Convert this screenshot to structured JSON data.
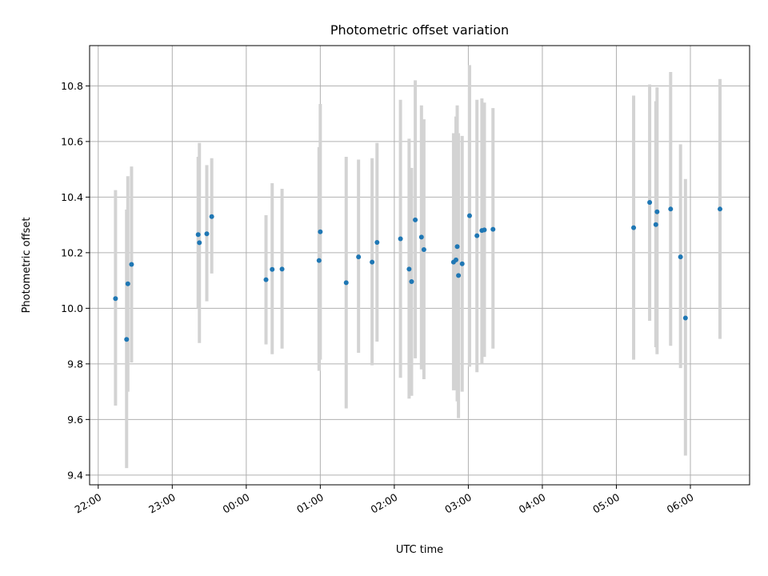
{
  "chart_data": {
    "type": "scatter",
    "title": "Photometric offset variation",
    "xlabel": "UTC time",
    "ylabel": "Photometric offset",
    "x_axis_kind": "time",
    "xlim": [
      "21:53",
      "06:48"
    ],
    "ylim": [
      9.365,
      10.945
    ],
    "grid": true,
    "x_ticks": [
      "22:00",
      "23:00",
      "00:00",
      "01:00",
      "02:00",
      "03:00",
      "04:00",
      "05:00",
      "06:00"
    ],
    "y_ticks": [
      "9.4",
      "9.6",
      "9.8",
      "10.0",
      "10.2",
      "10.4",
      "10.6",
      "10.8"
    ],
    "points": [
      {
        "x": "22:14",
        "y": 10.035,
        "err_low": 9.65,
        "err_high": 10.425
      },
      {
        "x": "22:23",
        "y": 9.888,
        "err_low": 9.425,
        "err_high": 10.355
      },
      {
        "x": "22:24",
        "y": 10.088,
        "err_low": 9.7,
        "err_high": 10.475
      },
      {
        "x": "22:27",
        "y": 10.158,
        "err_low": 9.805,
        "err_high": 10.51
      },
      {
        "x": "23:21",
        "y": 10.265,
        "err_low": 10.0,
        "err_high": 10.545
      },
      {
        "x": "23:22",
        "y": 10.236,
        "err_low": 9.875,
        "err_high": 10.595
      },
      {
        "x": "23:28",
        "y": 10.268,
        "err_low": 10.025,
        "err_high": 10.515
      },
      {
        "x": "23:32",
        "y": 10.33,
        "err_low": 10.125,
        "err_high": 10.54
      },
      {
        "x": "00:16",
        "y": 10.103,
        "err_low": 9.87,
        "err_high": 10.335
      },
      {
        "x": "00:21",
        "y": 10.14,
        "err_low": 9.835,
        "err_high": 10.45
      },
      {
        "x": "00:29",
        "y": 10.141,
        "err_low": 9.855,
        "err_high": 10.43
      },
      {
        "x": "00:59",
        "y": 10.172,
        "err_low": 9.775,
        "err_high": 10.58
      },
      {
        "x": "01:00",
        "y": 10.275,
        "err_low": 9.815,
        "err_high": 10.735
      },
      {
        "x": "01:21",
        "y": 10.092,
        "err_low": 9.64,
        "err_high": 10.545
      },
      {
        "x": "01:31",
        "y": 10.185,
        "err_low": 9.84,
        "err_high": 10.535
      },
      {
        "x": "01:42",
        "y": 10.166,
        "err_low": 9.795,
        "err_high": 10.54
      },
      {
        "x": "01:46",
        "y": 10.237,
        "err_low": 9.88,
        "err_high": 10.595
      },
      {
        "x": "02:05",
        "y": 10.25,
        "err_low": 9.75,
        "err_high": 10.75
      },
      {
        "x": "02:12",
        "y": 10.141,
        "err_low": 9.675,
        "err_high": 10.61
      },
      {
        "x": "02:14",
        "y": 10.096,
        "err_low": 9.685,
        "err_high": 10.505
      },
      {
        "x": "02:17",
        "y": 10.318,
        "err_low": 9.82,
        "err_high": 10.82
      },
      {
        "x": "02:22",
        "y": 10.256,
        "err_low": 9.78,
        "err_high": 10.73
      },
      {
        "x": "02:24",
        "y": 10.211,
        "err_low": 9.745,
        "err_high": 10.68
      },
      {
        "x": "02:48",
        "y": 10.166,
        "err_low": 9.705,
        "err_high": 10.63
      },
      {
        "x": "02:50",
        "y": 10.174,
        "err_low": 9.705,
        "err_high": 10.69
      },
      {
        "x": "02:51",
        "y": 10.222,
        "err_low": 9.665,
        "err_high": 10.73
      },
      {
        "x": "02:52",
        "y": 10.118,
        "err_low": 9.605,
        "err_high": 10.63
      },
      {
        "x": "02:55",
        "y": 10.16,
        "err_low": 9.7,
        "err_high": 10.62
      },
      {
        "x": "03:01",
        "y": 10.333,
        "err_low": 9.79,
        "err_high": 10.875
      },
      {
        "x": "03:07",
        "y": 10.261,
        "err_low": 9.77,
        "err_high": 10.75
      },
      {
        "x": "03:11",
        "y": 10.28,
        "err_low": 9.8,
        "err_high": 10.755
      },
      {
        "x": "03:13",
        "y": 10.282,
        "err_low": 9.825,
        "err_high": 10.74
      },
      {
        "x": "03:20",
        "y": 10.284,
        "err_low": 9.855,
        "err_high": 10.72
      },
      {
        "x": "05:14",
        "y": 10.29,
        "err_low": 9.815,
        "err_high": 10.765
      },
      {
        "x": "05:27",
        "y": 10.381,
        "err_low": 9.955,
        "err_high": 10.805
      },
      {
        "x": "05:32",
        "y": 10.301,
        "err_low": 9.86,
        "err_high": 10.745
      },
      {
        "x": "05:33",
        "y": 10.347,
        "err_low": 9.835,
        "err_high": 10.795
      },
      {
        "x": "05:44",
        "y": 10.357,
        "err_low": 9.865,
        "err_high": 10.85
      },
      {
        "x": "05:52",
        "y": 10.185,
        "err_low": 9.785,
        "err_high": 10.59
      },
      {
        "x": "05:56",
        "y": 9.965,
        "err_low": 9.47,
        "err_high": 10.465
      },
      {
        "x": "06:24",
        "y": 10.357,
        "err_low": 9.89,
        "err_high": 10.825
      }
    ]
  }
}
